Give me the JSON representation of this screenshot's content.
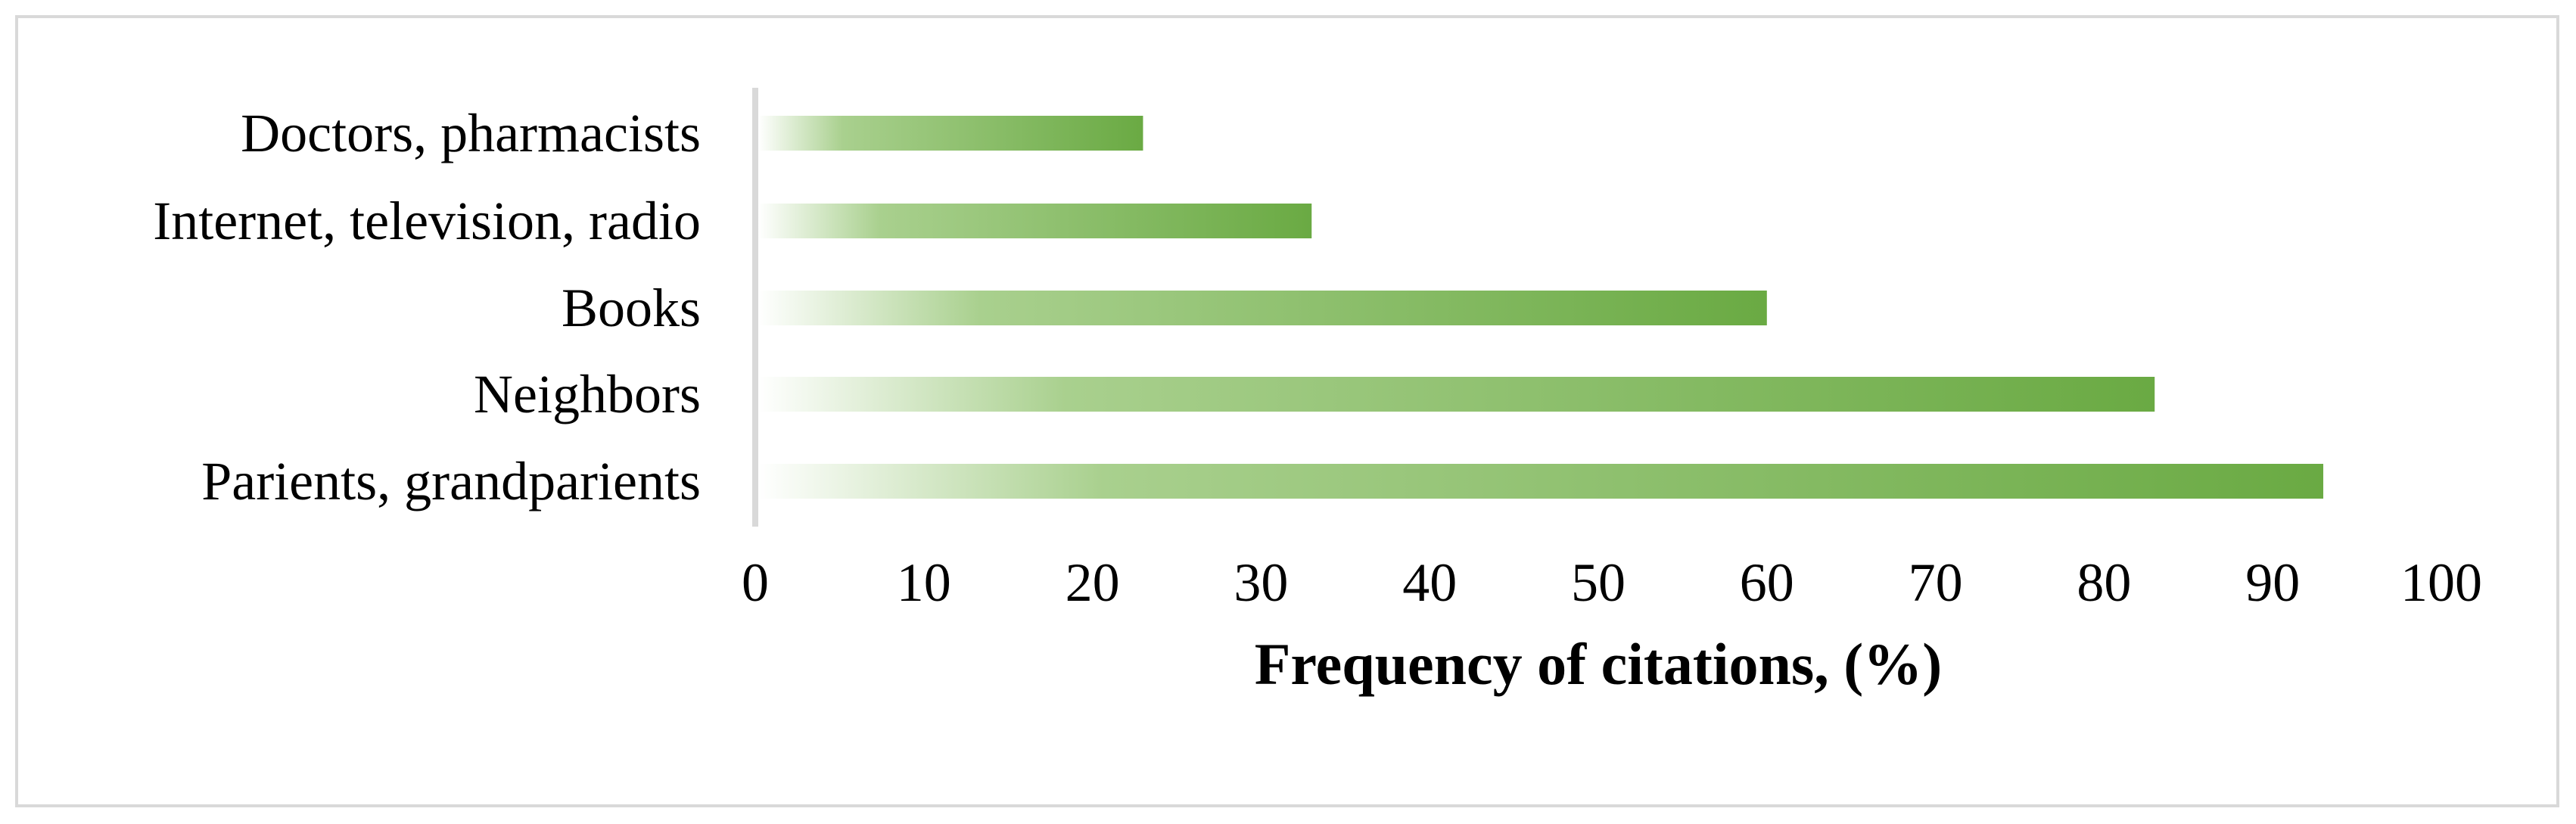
{
  "chart_data": {
    "type": "bar",
    "orientation": "horizontal",
    "categories": [
      "Doctors, pharmacists",
      "Internet, television, radio",
      "Books",
      "Neighbors",
      "Parients, grandparients"
    ],
    "values": [
      23,
      33,
      60,
      83,
      93
    ],
    "xlabel": "Frequency of citations, (%)",
    "ylabel": "",
    "title": "",
    "xlim": [
      0,
      100
    ],
    "xticks": [
      "0",
      "10",
      "20",
      "30",
      "40",
      "50",
      "60",
      "70",
      "80",
      "90",
      "100"
    ],
    "grid": false,
    "legend": "none",
    "colors": {
      "bar_end": "#6aaa43",
      "bar_mid": "#a9d08e",
      "bar_start": "#ffffff",
      "axis": "#d9d9d9",
      "frame": "#d9d9d9"
    }
  }
}
